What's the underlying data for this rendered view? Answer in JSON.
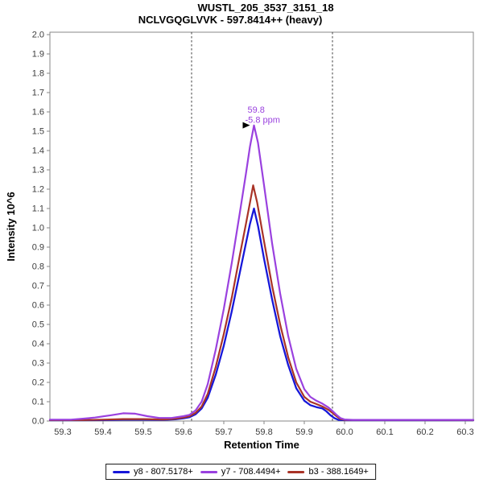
{
  "title": {
    "line1": "WUSTL_205_3537_3151_18",
    "line2": "NCLVGQGLVVK - 597.8414++ (heavy)"
  },
  "chart_data": {
    "type": "line",
    "title": "WUSTL_205_3537_3151_18 / NCLVGQGLVVK - 597.8414++ (heavy)",
    "xlabel": "Retention Time",
    "ylabel": "Intensity 10^6",
    "xlim": [
      59.268,
      60.32
    ],
    "ylim": [
      0,
      2.0125
    ],
    "grid": false,
    "legend_position": "bottom",
    "frame_color": "#878787",
    "tick_label_color": "#3c3c3c",
    "x_ticks": [
      "59.3",
      "59.4",
      "59.5",
      "59.6",
      "59.7",
      "59.8",
      "59.9",
      "60.0",
      "60.1",
      "60.2",
      "60.3"
    ],
    "x_tick_values": [
      59.3,
      59.4,
      59.5,
      59.6,
      59.7,
      59.8,
      59.9,
      60.0,
      60.1,
      60.2,
      60.3
    ],
    "y_ticks": [
      "0.0",
      "0.1",
      "0.2",
      "0.3",
      "0.4",
      "0.5",
      "0.6",
      "0.7",
      "0.8",
      "0.9",
      "1.0",
      "1.1",
      "1.2",
      "1.3",
      "1.4",
      "1.5",
      "1.6",
      "1.7",
      "1.8",
      "1.9",
      "2.0"
    ],
    "y_tick_values": [
      0,
      0.1,
      0.2,
      0.3,
      0.4,
      0.5,
      0.6,
      0.7,
      0.8,
      0.9,
      1.0,
      1.1,
      1.2,
      1.3,
      1.4,
      1.5,
      1.6,
      1.7,
      1.8,
      1.9,
      2.0
    ],
    "integration_boundaries": [
      59.62,
      59.97
    ],
    "boundary_color": "#404040",
    "annotation": {
      "text": "59.8",
      "subtext": "-5.8 ppm",
      "x": 59.775,
      "y": 1.53,
      "color": "#9A41DF",
      "marker": "black-right-triangle",
      "marker_color": "#000000"
    },
    "draw_order": [
      0,
      2,
      1
    ],
    "series": [
      {
        "name": "y8 - 807.5178+",
        "color": "#1717D9",
        "width": 2.3,
        "points": [
          [
            59.268,
            0.004
          ],
          [
            59.35,
            0.004
          ],
          [
            59.4,
            0.005
          ],
          [
            59.45,
            0.007
          ],
          [
            59.5,
            0.007
          ],
          [
            59.55,
            0.006
          ],
          [
            59.58,
            0.009
          ],
          [
            59.6,
            0.014
          ],
          [
            59.615,
            0.02
          ],
          [
            59.63,
            0.035
          ],
          [
            59.645,
            0.065
          ],
          [
            59.66,
            0.12
          ],
          [
            59.68,
            0.24
          ],
          [
            59.7,
            0.39
          ],
          [
            59.72,
            0.57
          ],
          [
            59.74,
            0.77
          ],
          [
            59.755,
            0.92
          ],
          [
            59.765,
            1.02
          ],
          [
            59.775,
            1.1
          ],
          [
            59.785,
            1.01
          ],
          [
            59.8,
            0.84
          ],
          [
            59.82,
            0.63
          ],
          [
            59.84,
            0.44
          ],
          [
            59.86,
            0.29
          ],
          [
            59.88,
            0.17
          ],
          [
            59.9,
            0.105
          ],
          [
            59.915,
            0.082
          ],
          [
            59.93,
            0.072
          ],
          [
            59.945,
            0.065
          ],
          [
            59.955,
            0.05
          ],
          [
            59.965,
            0.03
          ],
          [
            59.975,
            0.015
          ],
          [
            59.985,
            0.006
          ],
          [
            60.0,
            0.004
          ],
          [
            60.32,
            0.004
          ]
        ]
      },
      {
        "name": "y7 - 708.4494+",
        "color": "#9A41DF",
        "width": 2.2,
        "points": [
          [
            59.268,
            0.007
          ],
          [
            59.32,
            0.007
          ],
          [
            59.35,
            0.012
          ],
          [
            59.38,
            0.018
          ],
          [
            59.42,
            0.03
          ],
          [
            59.45,
            0.04
          ],
          [
            59.48,
            0.038
          ],
          [
            59.51,
            0.025
          ],
          [
            59.54,
            0.016
          ],
          [
            59.57,
            0.016
          ],
          [
            59.6,
            0.025
          ],
          [
            59.615,
            0.032
          ],
          [
            59.63,
            0.055
          ],
          [
            59.645,
            0.1
          ],
          [
            59.66,
            0.19
          ],
          [
            59.68,
            0.37
          ],
          [
            59.7,
            0.58
          ],
          [
            59.72,
            0.82
          ],
          [
            59.74,
            1.08
          ],
          [
            59.755,
            1.28
          ],
          [
            59.765,
            1.42
          ],
          [
            59.775,
            1.53
          ],
          [
            59.785,
            1.44
          ],
          [
            59.8,
            1.22
          ],
          [
            59.82,
            0.92
          ],
          [
            59.84,
            0.66
          ],
          [
            59.86,
            0.44
          ],
          [
            59.88,
            0.27
          ],
          [
            59.9,
            0.165
          ],
          [
            59.915,
            0.125
          ],
          [
            59.93,
            0.105
          ],
          [
            59.945,
            0.09
          ],
          [
            59.96,
            0.07
          ],
          [
            59.97,
            0.052
          ],
          [
            59.98,
            0.032
          ],
          [
            59.99,
            0.015
          ],
          [
            60.0,
            0.008
          ],
          [
            60.02,
            0.006
          ],
          [
            60.1,
            0.006
          ],
          [
            60.32,
            0.006
          ]
        ]
      },
      {
        "name": "b3 - 388.1649+",
        "color": "#A93327",
        "width": 2.2,
        "points": [
          [
            59.268,
            0.005
          ],
          [
            59.35,
            0.005
          ],
          [
            59.4,
            0.007
          ],
          [
            59.45,
            0.01
          ],
          [
            59.5,
            0.01
          ],
          [
            59.55,
            0.008
          ],
          [
            59.58,
            0.012
          ],
          [
            59.6,
            0.018
          ],
          [
            59.615,
            0.025
          ],
          [
            59.63,
            0.042
          ],
          [
            59.645,
            0.075
          ],
          [
            59.66,
            0.14
          ],
          [
            59.68,
            0.28
          ],
          [
            59.7,
            0.45
          ],
          [
            59.72,
            0.64
          ],
          [
            59.74,
            0.86
          ],
          [
            59.755,
            1.02
          ],
          [
            59.765,
            1.13
          ],
          [
            59.773,
            1.22
          ],
          [
            59.783,
            1.13
          ],
          [
            59.8,
            0.93
          ],
          [
            59.82,
            0.7
          ],
          [
            59.84,
            0.5
          ],
          [
            59.86,
            0.33
          ],
          [
            59.88,
            0.2
          ],
          [
            59.9,
            0.125
          ],
          [
            59.915,
            0.1
          ],
          [
            59.93,
            0.088
          ],
          [
            59.945,
            0.075
          ],
          [
            59.96,
            0.058
          ],
          [
            59.97,
            0.042
          ],
          [
            59.98,
            0.025
          ],
          [
            59.99,
            0.01
          ],
          [
            60.0,
            0.006
          ],
          [
            60.32,
            0.005
          ]
        ]
      }
    ]
  },
  "legend": {
    "items": [
      {
        "label": "y8 - 807.5178+",
        "color": "#1717D9"
      },
      {
        "label": "y7 - 708.4494+",
        "color": "#9A41DF"
      },
      {
        "label": "b3 - 388.1649+",
        "color": "#A93327"
      }
    ]
  }
}
